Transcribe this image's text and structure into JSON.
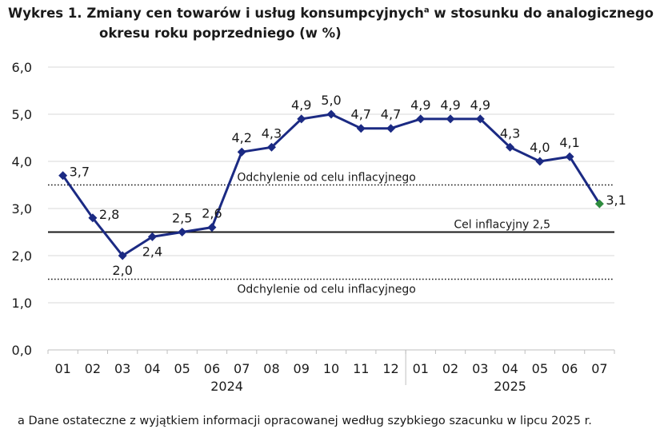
{
  "title": {
    "line1_main": "Wykres 1. Zmiany cen towarów i usług konsumpcyjnych",
    "line1_sup": "a",
    "line1_tail": " w stosunku do analogicznego",
    "line2": "okresu roku poprzedniego (w %)"
  },
  "footnote": "a Dane ostateczne z wyjątkiem informacji opracowanej według szybkiego szacunku w lipcu 2025 r.",
  "colors": {
    "series": "#1b2a83",
    "highlight": "#2e8b3e",
    "grid": "#d9d9d9",
    "reference": "#1a1a1a"
  },
  "chart_data": {
    "type": "line",
    "categories": [
      "01",
      "02",
      "03",
      "04",
      "05",
      "06",
      "07",
      "08",
      "09",
      "10",
      "11",
      "12",
      "01",
      "02",
      "03",
      "04",
      "05",
      "06",
      "07"
    ],
    "year_groups": [
      {
        "label": "2024",
        "start": 0,
        "end": 11
      },
      {
        "label": "2025",
        "start": 12,
        "end": 18
      }
    ],
    "series": [
      {
        "values": [
          3.7,
          2.8,
          2.0,
          2.4,
          2.5,
          2.6,
          4.2,
          4.3,
          4.9,
          5.0,
          4.7,
          4.7,
          4.9,
          4.9,
          4.9,
          4.3,
          4.0,
          4.1,
          3.1
        ],
        "labels": [
          "3,7",
          "2,8",
          "2,0",
          "2,4",
          "2,5",
          "2,6",
          "4,2",
          "4,3",
          "4,9",
          "5,0",
          "4,7",
          "4,7",
          "4,9",
          "4,9",
          "4,9",
          "4,3",
          "4,0",
          "4,1",
          "3,1"
        ],
        "highlight_index": 18
      }
    ],
    "reference_lines": [
      {
        "value": 3.5,
        "style": "dotted",
        "label": "Odchylenie od celu inflacyjnego"
      },
      {
        "value": 2.5,
        "style": "solid",
        "label": "Cel inflacyjny 2,5"
      },
      {
        "value": 1.5,
        "style": "dotted",
        "label": "Odchylenie od celu inflacyjnego"
      }
    ],
    "ylim": [
      0,
      6
    ],
    "yticks": [
      0,
      1,
      2,
      3,
      4,
      5,
      6
    ],
    "ytick_labels": [
      "0,0",
      "1,0",
      "2,0",
      "3,0",
      "4,0",
      "5,0",
      "6,0"
    ],
    "grid": true,
    "legend": "none"
  }
}
